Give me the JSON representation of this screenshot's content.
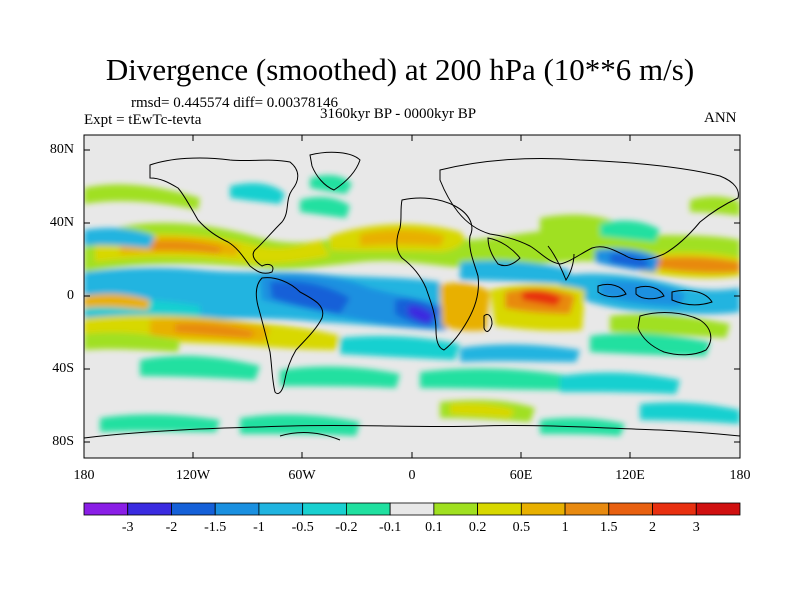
{
  "title": "Divergence (smoothed) at 200 hPa (10**6 m/s)",
  "stats": "rmsd= 0.445574 diff= 0.00378146",
  "experiment": "Expt = tEwTc-tevta",
  "period": "3160kyr BP - 0000kyr BP",
  "season": "ANN",
  "axes": {
    "y_ticks": [
      "80N",
      "40N",
      "0",
      "40S",
      "80S"
    ],
    "x_ticks": [
      "180",
      "120W",
      "60W",
      "0",
      "60E",
      "120E",
      "180"
    ]
  },
  "colorbar": {
    "labels": [
      "-3",
      "-2",
      "-1.5",
      "-1",
      "-0.5",
      "-0.2",
      "-0.1",
      "0.1",
      "0.2",
      "0.5",
      "1",
      "1.5",
      "2",
      "3"
    ],
    "colors": [
      "#8a1ee6",
      "#3a2be0",
      "#1560d8",
      "#1a90e0",
      "#20b4e0",
      "#19d0d0",
      "#20e0a0",
      "#e8e8e8",
      "#a0e020",
      "#d8d800",
      "#e8b000",
      "#e88a10",
      "#e86010",
      "#e83010",
      "#d01010"
    ]
  }
}
